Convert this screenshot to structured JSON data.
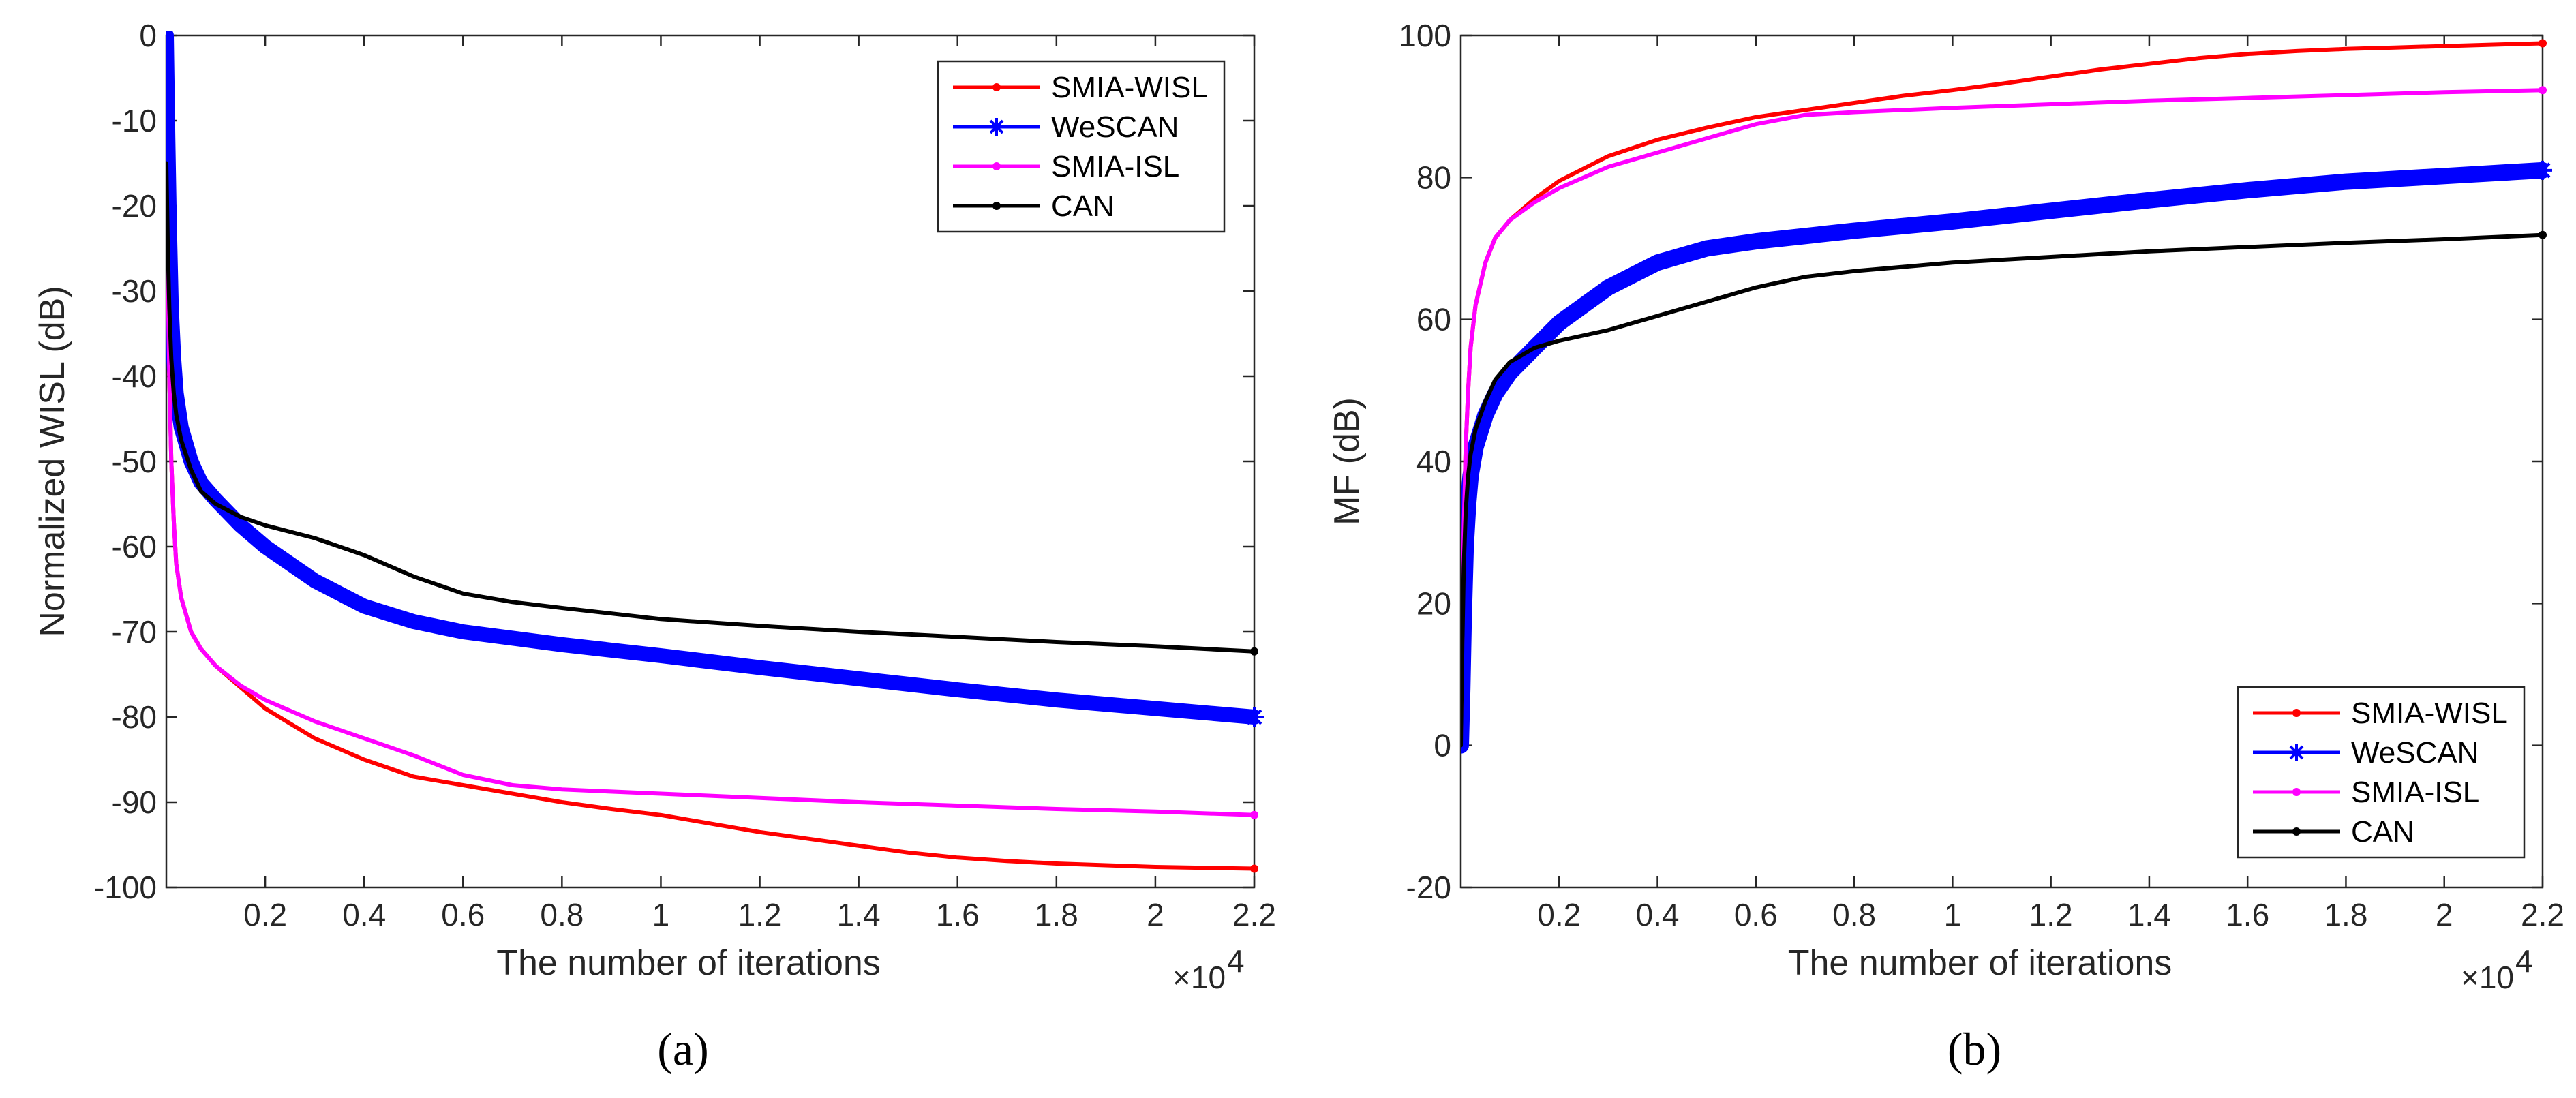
{
  "chart_data": [
    {
      "type": "line",
      "panel_label": "(a)",
      "xlabel": "The number of iterations",
      "ylabel": "Normalized WISL (dB)",
      "x_multiplier_label": "×10",
      "x_multiplier_exp": "4",
      "xlim": [
        0,
        2.2
      ],
      "ylim": [
        -100,
        0
      ],
      "xticks": [
        0.2,
        0.4,
        0.6,
        0.8,
        1,
        1.2,
        1.4,
        1.6,
        1.8,
        2,
        2.2
      ],
      "xtick_labels": [
        "0.2",
        "0.4",
        "0.6",
        "0.8",
        "1",
        "1.2",
        "1.4",
        "1.6",
        "1.8",
        "2",
        "2.2"
      ],
      "yticks": [
        -100,
        -90,
        -80,
        -70,
        -60,
        -50,
        -40,
        -30,
        -20,
        -10,
        0
      ],
      "ytick_labels": [
        "-100",
        "-90",
        "-80",
        "-70",
        "-60",
        "-50",
        "-40",
        "-30",
        "-20",
        "-10",
        "0"
      ],
      "legend_position": "top-right",
      "series": [
        {
          "name": "SMIA-WISL",
          "color": "#ff0000",
          "marker": "dot",
          "width": 6,
          "x": [
            0,
            0.003,
            0.006,
            0.01,
            0.015,
            0.02,
            0.03,
            0.05,
            0.07,
            0.1,
            0.15,
            0.2,
            0.3,
            0.4,
            0.5,
            0.6,
            0.7,
            0.8,
            0.9,
            1.0,
            1.1,
            1.2,
            1.3,
            1.4,
            1.5,
            1.6,
            1.7,
            1.8,
            1.9,
            2.0,
            2.1,
            2.2
          ],
          "y": [
            -20,
            -28,
            -40,
            -50,
            -57,
            -62,
            -66,
            -70,
            -72,
            -74,
            -76.5,
            -79,
            -82.5,
            -85,
            -87,
            -88,
            -89,
            -90,
            -90.8,
            -91.5,
            -92.5,
            -93.5,
            -94.3,
            -95.1,
            -95.9,
            -96.5,
            -96.9,
            -97.2,
            -97.4,
            -97.6,
            -97.7,
            -97.8
          ]
        },
        {
          "name": "WeSCAN",
          "color": "#0000ff",
          "marker": "star",
          "width": 22,
          "x": [
            0,
            0.003,
            0.006,
            0.01,
            0.015,
            0.02,
            0.03,
            0.05,
            0.07,
            0.1,
            0.15,
            0.2,
            0.3,
            0.4,
            0.5,
            0.6,
            0.8,
            1.0,
            1.2,
            1.4,
            1.6,
            1.8,
            2.0,
            2.2
          ],
          "y": [
            0,
            -12,
            -22,
            -32,
            -38,
            -42,
            -46,
            -50,
            -52.5,
            -54.5,
            -57.5,
            -60,
            -64,
            -67,
            -68.8,
            -70,
            -71.5,
            -72.8,
            -74.2,
            -75.5,
            -76.8,
            -78,
            -79,
            -80
          ]
        },
        {
          "name": "SMIA-ISL",
          "color": "#ff00ff",
          "marker": "dot",
          "width": 6,
          "x": [
            0,
            0.003,
            0.006,
            0.01,
            0.015,
            0.02,
            0.03,
            0.05,
            0.07,
            0.1,
            0.15,
            0.2,
            0.3,
            0.4,
            0.5,
            0.6,
            0.7,
            0.8,
            1.0,
            1.2,
            1.4,
            1.6,
            1.8,
            2.0,
            2.2
          ],
          "y": [
            -20,
            -28,
            -40,
            -50,
            -57,
            -62,
            -66,
            -70,
            -72,
            -74,
            -76.3,
            -78,
            -80.5,
            -82.5,
            -84.5,
            -86.8,
            -88,
            -88.5,
            -89,
            -89.5,
            -90,
            -90.4,
            -90.8,
            -91.1,
            -91.5
          ]
        },
        {
          "name": "CAN",
          "color": "#000000",
          "marker": "dot",
          "width": 6,
          "x": [
            0,
            0.003,
            0.006,
            0.01,
            0.015,
            0.02,
            0.03,
            0.05,
            0.07,
            0.1,
            0.15,
            0.2,
            0.3,
            0.4,
            0.5,
            0.6,
            0.7,
            0.8,
            1.0,
            1.2,
            1.4,
            1.6,
            1.8,
            2.0,
            2.2
          ],
          "y": [
            -15,
            -25,
            -32,
            -38,
            -42,
            -44.5,
            -47.5,
            -51,
            -53.5,
            -55,
            -56.5,
            -57.5,
            -59,
            -61,
            -63.5,
            -65.5,
            -66.5,
            -67.2,
            -68.5,
            -69.3,
            -70,
            -70.6,
            -71.2,
            -71.7,
            -72.3
          ]
        }
      ]
    },
    {
      "type": "line",
      "panel_label": "(b)",
      "xlabel": "The number of iterations",
      "ylabel": "MF (dB)",
      "x_multiplier_label": "×10",
      "x_multiplier_exp": "4",
      "xlim": [
        0,
        2.2
      ],
      "ylim": [
        -20,
        100
      ],
      "xticks": [
        0.2,
        0.4,
        0.6,
        0.8,
        1,
        1.2,
        1.4,
        1.6,
        1.8,
        2,
        2.2
      ],
      "xtick_labels": [
        "0.2",
        "0.4",
        "0.6",
        "0.8",
        "1",
        "1.2",
        "1.4",
        "1.6",
        "1.8",
        "2",
        "2.2"
      ],
      "yticks": [
        -20,
        0,
        20,
        40,
        60,
        80,
        100
      ],
      "ytick_labels": [
        "-20",
        "0",
        "20",
        "40",
        "60",
        "80",
        "100"
      ],
      "legend_position": "bottom-right",
      "series": [
        {
          "name": "SMIA-WISL",
          "color": "#ff0000",
          "marker": "dot",
          "width": 6,
          "x": [
            0,
            0.003,
            0.006,
            0.01,
            0.015,
            0.02,
            0.03,
            0.05,
            0.07,
            0.1,
            0.15,
            0.2,
            0.3,
            0.4,
            0.5,
            0.6,
            0.7,
            0.8,
            0.9,
            1.0,
            1.1,
            1.2,
            1.3,
            1.4,
            1.5,
            1.6,
            1.7,
            1.8,
            1.9,
            2.0,
            2.1,
            2.2
          ],
          "y": [
            1,
            15,
            30,
            42,
            50,
            56,
            62,
            68,
            71.5,
            74,
            77,
            79.5,
            83,
            85.3,
            87,
            88.5,
            89.5,
            90.5,
            91.5,
            92.3,
            93.2,
            94.2,
            95.2,
            96,
            96.8,
            97.4,
            97.8,
            98.1,
            98.3,
            98.5,
            98.7,
            98.9
          ]
        },
        {
          "name": "WeSCAN",
          "color": "#0000ff",
          "marker": "star",
          "width": 24,
          "x": [
            0,
            0.003,
            0.006,
            0.01,
            0.015,
            0.02,
            0.03,
            0.05,
            0.07,
            0.1,
            0.15,
            0.2,
            0.3,
            0.4,
            0.5,
            0.6,
            0.8,
            1.0,
            1.2,
            1.4,
            1.6,
            1.8,
            2.0,
            2.2
          ],
          "y": [
            0,
            8,
            18,
            28,
            34,
            38,
            42,
            46.5,
            49.5,
            52.5,
            56,
            59.5,
            64.5,
            68,
            70,
            71,
            72.5,
            73.8,
            75.3,
            76.8,
            78.2,
            79.4,
            80.2,
            81
          ]
        },
        {
          "name": "SMIA-ISL",
          "color": "#ff00ff",
          "marker": "dot",
          "width": 6,
          "x": [
            0,
            0.003,
            0.006,
            0.01,
            0.015,
            0.02,
            0.03,
            0.05,
            0.07,
            0.1,
            0.15,
            0.2,
            0.3,
            0.4,
            0.5,
            0.6,
            0.7,
            0.8,
            1.0,
            1.2,
            1.4,
            1.6,
            1.8,
            2.0,
            2.2
          ],
          "y": [
            1,
            15,
            30,
            42,
            50,
            56,
            62,
            68,
            71.5,
            74,
            76.5,
            78.5,
            81.5,
            83.5,
            85.5,
            87.5,
            88.8,
            89.2,
            89.8,
            90.3,
            90.8,
            91.2,
            91.6,
            92,
            92.3
          ]
        },
        {
          "name": "CAN",
          "color": "#000000",
          "marker": "dot",
          "width": 6,
          "x": [
            0,
            0.003,
            0.006,
            0.01,
            0.015,
            0.02,
            0.03,
            0.05,
            0.07,
            0.1,
            0.15,
            0.2,
            0.3,
            0.4,
            0.5,
            0.6,
            0.7,
            0.8,
            1.0,
            1.2,
            1.4,
            1.6,
            1.8,
            2.0,
            2.2
          ],
          "y": [
            0,
            14,
            25,
            33,
            38,
            41,
            44.5,
            48.5,
            51.5,
            54,
            56,
            57,
            58.5,
            60.5,
            62.5,
            64.5,
            66,
            66.8,
            68,
            68.8,
            69.6,
            70.2,
            70.8,
            71.3,
            71.9
          ]
        }
      ]
    }
  ]
}
